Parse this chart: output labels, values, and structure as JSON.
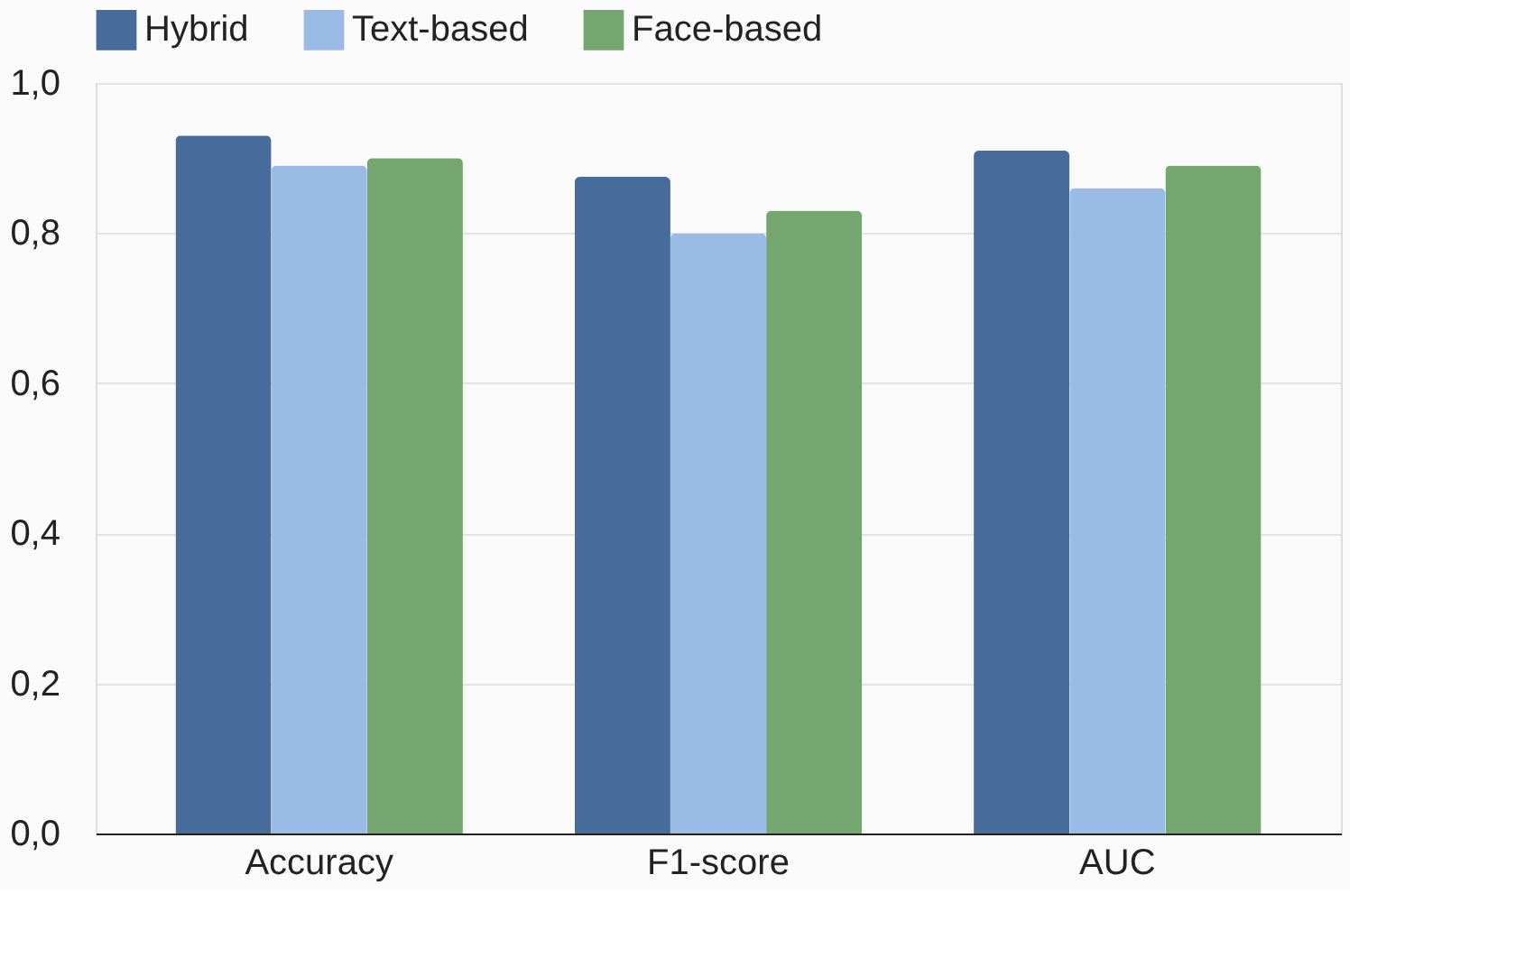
{
  "chart_data": {
    "type": "bar",
    "categories": [
      "Accuracy",
      "F1-score",
      "AUC"
    ],
    "series": [
      {
        "name": "Hybrid",
        "color": "#476c9b",
        "values": [
          0.93,
          0.875,
          0.91
        ]
      },
      {
        "name": "Text-based",
        "color": "#9abbe6",
        "values": [
          0.89,
          0.8,
          0.86
        ]
      },
      {
        "name": "Face-based",
        "color": "#76a66f",
        "values": [
          0.9,
          0.83,
          0.89
        ]
      }
    ],
    "ylim": [
      0,
      1
    ],
    "yticks": [
      {
        "value": 0,
        "label": "0,0"
      },
      {
        "value": 0.2,
        "label": "0,2"
      },
      {
        "value": 0.4,
        "label": "0,4"
      },
      {
        "value": 0.6,
        "label": "0,6"
      },
      {
        "value": 0.8,
        "label": "0,8"
      },
      {
        "value": 1,
        "label": "1,0"
      }
    ],
    "grid": "y",
    "legend": "top"
  }
}
